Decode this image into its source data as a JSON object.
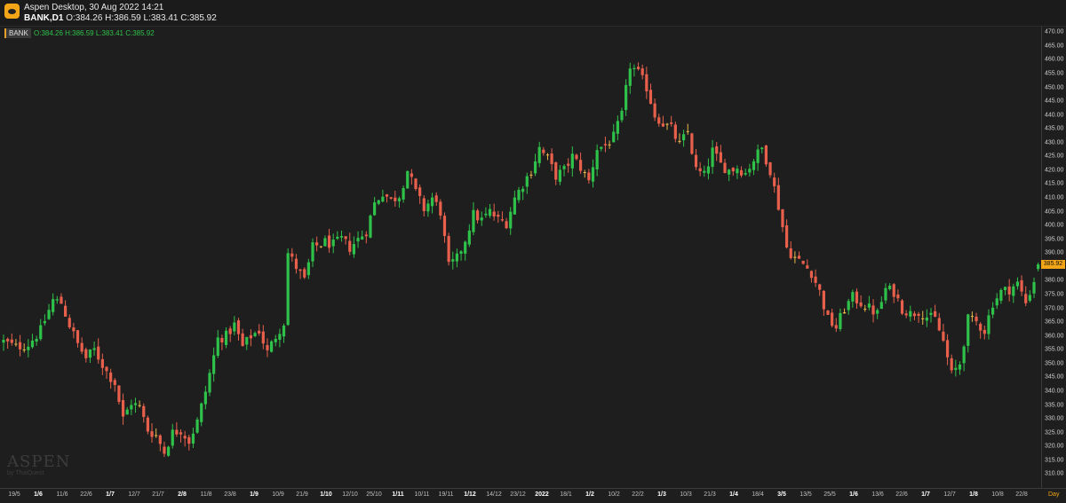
{
  "window": {
    "title": "Aspen Desktop, 30 Aug 2022 14:21",
    "symbol": "BANK,D1",
    "ohlc_text": "O:384.26 H:386.59 L:383.41 C:385.92"
  },
  "legend": {
    "symbol": "BANK",
    "ohlc_text": "O:384.26  H:386.59  L:383.41  C:385.92"
  },
  "watermark": {
    "main": "ASPEN",
    "sub": "by ThaiQuest"
  },
  "colors": {
    "up": "#2fc24a",
    "down": "#e8604c",
    "doji": "#e6b84a",
    "price_tag": "#f2a516",
    "background": "#1e1e1e"
  },
  "x_unit": "Day",
  "chart_data": {
    "type": "candlestick",
    "symbol": "BANK",
    "timeframe": "D1",
    "ylim": [
      305,
      472
    ],
    "y_ticks": [
      310,
      315,
      320,
      325,
      330,
      335,
      340,
      345,
      350,
      355,
      360,
      365,
      370,
      375,
      380,
      385,
      390,
      395,
      400,
      405,
      410,
      415,
      420,
      425,
      430,
      435,
      440,
      445,
      450,
      455,
      460,
      465,
      470
    ],
    "current_price": "385.92",
    "last_bar": {
      "open": 384.26,
      "high": 386.59,
      "low": 383.41,
      "close": 385.92
    },
    "x_labels": [
      {
        "label": "19/5",
        "bold": false
      },
      {
        "label": "1/6",
        "bold": true
      },
      {
        "label": "11/6",
        "bold": false
      },
      {
        "label": "22/6",
        "bold": false
      },
      {
        "label": "1/7",
        "bold": true
      },
      {
        "label": "12/7",
        "bold": false
      },
      {
        "label": "21/7",
        "bold": false
      },
      {
        "label": "2/8",
        "bold": true
      },
      {
        "label": "11/8",
        "bold": false
      },
      {
        "label": "23/8",
        "bold": false
      },
      {
        "label": "1/9",
        "bold": true
      },
      {
        "label": "10/9",
        "bold": false
      },
      {
        "label": "21/9",
        "bold": false
      },
      {
        "label": "1/10",
        "bold": true
      },
      {
        "label": "12/10",
        "bold": false
      },
      {
        "label": "25/10",
        "bold": false
      },
      {
        "label": "1/11",
        "bold": true
      },
      {
        "label": "10/11",
        "bold": false
      },
      {
        "label": "19/11",
        "bold": false
      },
      {
        "label": "1/12",
        "bold": true
      },
      {
        "label": "14/12",
        "bold": false
      },
      {
        "label": "23/12",
        "bold": false
      },
      {
        "label": "2022",
        "bold": true
      },
      {
        "label": "18/1",
        "bold": false
      },
      {
        "label": "1/2",
        "bold": true
      },
      {
        "label": "10/2",
        "bold": false
      },
      {
        "label": "22/2",
        "bold": false
      },
      {
        "label": "1/3",
        "bold": true
      },
      {
        "label": "10/3",
        "bold": false
      },
      {
        "label": "21/3",
        "bold": false
      },
      {
        "label": "1/4",
        "bold": true
      },
      {
        "label": "18/4",
        "bold": false
      },
      {
        "label": "3/5",
        "bold": true
      },
      {
        "label": "13/5",
        "bold": false
      },
      {
        "label": "25/5",
        "bold": false
      },
      {
        "label": "1/6",
        "bold": true
      },
      {
        "label": "13/6",
        "bold": false
      },
      {
        "label": "22/6",
        "bold": false
      },
      {
        "label": "1/7",
        "bold": true
      },
      {
        "label": "12/7",
        "bold": false
      },
      {
        "label": "1/8",
        "bold": true
      },
      {
        "label": "10/8",
        "bold": false
      },
      {
        "label": "22/8",
        "bold": false
      }
    ],
    "close_path": [
      [
        0,
        358
      ],
      [
        3,
        356
      ],
      [
        6,
        357
      ],
      [
        9,
        362
      ],
      [
        12,
        373
      ],
      [
        14,
        372
      ],
      [
        16,
        364
      ],
      [
        18,
        357
      ],
      [
        20,
        352
      ],
      [
        22,
        355
      ],
      [
        25,
        347
      ],
      [
        27,
        343
      ],
      [
        29,
        330
      ],
      [
        31,
        336
      ],
      [
        33,
        334
      ],
      [
        35,
        326
      ],
      [
        37,
        324
      ],
      [
        39,
        318
      ],
      [
        41,
        325
      ],
      [
        43,
        326
      ],
      [
        45,
        322
      ],
      [
        47,
        329
      ],
      [
        49,
        340
      ],
      [
        52,
        359
      ],
      [
        54,
        360
      ],
      [
        56,
        364
      ],
      [
        58,
        356
      ],
      [
        60,
        360
      ],
      [
        62,
        362
      ],
      [
        64,
        354
      ],
      [
        66,
        360
      ],
      [
        68,
        365
      ],
      [
        69,
        390
      ],
      [
        71,
        385
      ],
      [
        73,
        380
      ],
      [
        75,
        392
      ],
      [
        78,
        394
      ],
      [
        80,
        393
      ],
      [
        82,
        395
      ],
      [
        84,
        392
      ],
      [
        86,
        395
      ],
      [
        88,
        398
      ],
      [
        90,
        408
      ],
      [
        92,
        412
      ],
      [
        94,
        409
      ],
      [
        96,
        411
      ],
      [
        98,
        420
      ],
      [
        100,
        412
      ],
      [
        102,
        406
      ],
      [
        104,
        410
      ],
      [
        106,
        405
      ],
      [
        108,
        385
      ],
      [
        110,
        388
      ],
      [
        112,
        395
      ],
      [
        114,
        404
      ],
      [
        116,
        402
      ],
      [
        118,
        405
      ],
      [
        120,
        402
      ],
      [
        122,
        401
      ],
      [
        124,
        410
      ],
      [
        126,
        415
      ],
      [
        128,
        420
      ],
      [
        130,
        428
      ],
      [
        132,
        424
      ],
      [
        134,
        418
      ],
      [
        136,
        420
      ],
      [
        138,
        425
      ],
      [
        140,
        421
      ],
      [
        142,
        416
      ],
      [
        144,
        428
      ],
      [
        146,
        429
      ],
      [
        148,
        432
      ],
      [
        150,
        440
      ],
      [
        152,
        458
      ],
      [
        154,
        455
      ],
      [
        156,
        450
      ],
      [
        158,
        440
      ],
      [
        160,
        437
      ],
      [
        162,
        435
      ],
      [
        164,
        429
      ],
      [
        166,
        434
      ],
      [
        168,
        420
      ],
      [
        170,
        418
      ],
      [
        172,
        427
      ],
      [
        174,
        422
      ],
      [
        176,
        420
      ],
      [
        178,
        421
      ],
      [
        180,
        419
      ],
      [
        182,
        424
      ],
      [
        184,
        428
      ],
      [
        186,
        420
      ],
      [
        188,
        407
      ],
      [
        190,
        392
      ],
      [
        192,
        388
      ],
      [
        194,
        386
      ],
      [
        196,
        383
      ],
      [
        198,
        376
      ],
      [
        200,
        366
      ],
      [
        202,
        363
      ],
      [
        204,
        370
      ],
      [
        206,
        374
      ],
      [
        208,
        372
      ],
      [
        210,
        370
      ],
      [
        212,
        368
      ],
      [
        214,
        377
      ],
      [
        216,
        376
      ],
      [
        218,
        370
      ],
      [
        220,
        368
      ],
      [
        222,
        369
      ],
      [
        224,
        367
      ],
      [
        226,
        366
      ],
      [
        228,
        358
      ],
      [
        230,
        346
      ],
      [
        232,
        350
      ],
      [
        234,
        366
      ],
      [
        236,
        365
      ],
      [
        238,
        362
      ],
      [
        240,
        372
      ],
      [
        242,
        376
      ],
      [
        244,
        377
      ],
      [
        246,
        379
      ],
      [
        248,
        372
      ],
      [
        250,
        380
      ],
      [
        251,
        385.92
      ]
    ]
  }
}
